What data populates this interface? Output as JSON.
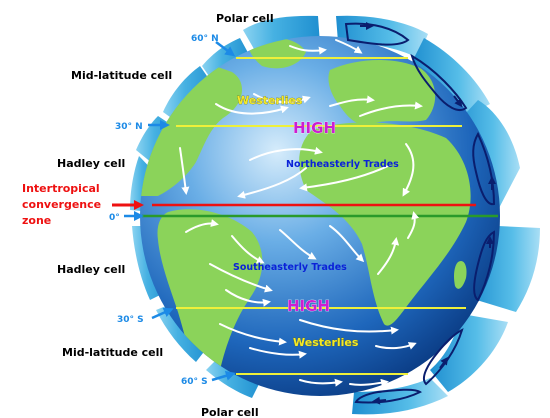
{
  "cells": {
    "polar_top": "Polar cell",
    "midlat_north": "Mid-latitude cell",
    "hadley_north": "Hadley cell",
    "hadley_south": "Hadley cell",
    "midlat_south": "Mid-latitude cell",
    "polar_bottom": "Polar cell"
  },
  "itcz": {
    "line1": "Intertropical",
    "line2": "convergence",
    "line3": "zone"
  },
  "latitudes": {
    "n60": "60° N",
    "n30": "30° N",
    "eq": "0°",
    "s30": "30° S",
    "s60": "60° S"
  },
  "pressure": {
    "north": "HIGH",
    "south": "HIGH"
  },
  "winds": {
    "westerlies_north": "Westerlies",
    "trades_north": "Northeasterly Trades",
    "trades_south": "Southeasterly Trades",
    "westerlies_south": "Westerlies"
  },
  "colors": {
    "ocean": "#1f6fc6",
    "land": "#8bd35a",
    "latitude_line": "#eef03a",
    "equator_line": "#2a9a2a",
    "itcz": "#ee1111",
    "high": "#cc1fd0",
    "trades": "#0b22d8",
    "cell_band": "#4fb6e4",
    "lat_label": "#1c8ae6"
  },
  "icons": {
    "wind_arrows": "white-curved-arrow",
    "lat_pointers": "blue-arrow",
    "cell_loops": "circulation-loop"
  }
}
